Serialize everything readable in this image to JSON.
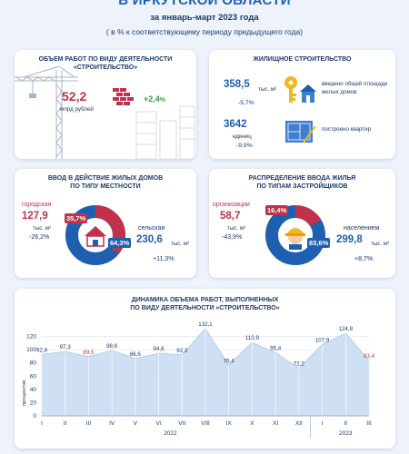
{
  "header": {
    "title": "В ИРКУТСКОЙ ОБЛАСТИ",
    "period": "за январь-март 2023 года",
    "note": "( в % к соответствующему периоду предыдущего года)"
  },
  "construction": {
    "title_line1": "ОБЪЕМ РАБОТ ПО ВИДУ ДЕЯТЕЛЬНОСТИ",
    "title_line2": "«СТРОИТЕЛЬСТВО»",
    "value": "52,2",
    "unit": "млрд рублей",
    "change": "+2,4",
    "change_unit": "%"
  },
  "housing": {
    "title": "ЖИЛИЩНОЕ СТРОИТЕЛЬСТВО",
    "area_value": "358,5",
    "area_unit": "тыс. м²",
    "area_change": "-5,7%",
    "area_desc": "введено общей площади жилых домов",
    "flats_value": "3642",
    "flats_unit": "единиц",
    "flats_change": "-9,9%",
    "flats_desc": "построено квартир"
  },
  "locality": {
    "title_line1": "ВВОД В ДЕЙСТВИЕ ЖИЛЫХ ДОМОВ",
    "title_line2": "ПО ТИПУ МЕСТНОСТИ",
    "urban_label": "городская",
    "urban_value": "127,9",
    "urban_unit": "тыс. м²",
    "urban_change": "-26,2%",
    "urban_share": "35,7%",
    "urban_share_value": 35.7,
    "rural_label": "сельская",
    "rural_value": "230,6",
    "rural_unit": "тыс. м²",
    "rural_change": "+11,3%",
    "rural_share": "64,3%"
  },
  "developers": {
    "title_line1": "РАСПРЕДЕЛЕНИЕ ВВОДА ЖИЛЬЯ",
    "title_line2": "ПО ТИПАМ ЗАСТРОЙЩИКОВ",
    "org_label": "организации",
    "org_value": "58,7",
    "org_unit": "тыс. м²",
    "org_change": "-43,9%",
    "org_share": "16,4%",
    "org_share_value": 16.4,
    "pop_label": "населением",
    "pop_value": "299,8",
    "pop_unit": "тыс. м²",
    "pop_change": "+8,7%",
    "pop_share": "83,6%"
  },
  "dynamics": {
    "title_line1": "ДИНАМИКА ОБЪЕМА РАБОТ, ВЫПОЛНЕННЫХ",
    "title_line2": "ПО ВИДУ ДЕЯТЕЛЬНОСТИ «СТРОИТЕЛЬСТВО»",
    "y_axis_label": "процентов",
    "year1": "2022",
    "year2": "2023"
  },
  "colors": {
    "blue": "#1f5fb0",
    "red": "#c0324a",
    "green": "#3a9a3a",
    "area_fill": "#cfe0f5",
    "background": "#eef3fb"
  },
  "chart_data": {
    "type": "area",
    "title": "ДИНАМИКА ОБЪЕМА РАБОТ, ВЫПОЛНЕННЫХ ПО ВИДУ ДЕЯТЕЛЬНОСТИ «СТРОИТЕЛЬСТВО»",
    "xlabel": "",
    "ylabel": "процентов",
    "ylim": [
      0,
      140
    ],
    "yticks": [
      0,
      20,
      40,
      60,
      80,
      100,
      120
    ],
    "grid": true,
    "categories": [
      "I",
      "II",
      "III",
      "IV",
      "V",
      "VI",
      "VII",
      "VIII",
      "IX",
      "X",
      "XI",
      "XII",
      "I",
      "II",
      "III"
    ],
    "values": [
      92.8,
      97.3,
      89.5,
      98.6,
      86.6,
      94.6,
      92.3,
      132.1,
      76.4,
      110.9,
      95.4,
      72.2,
      107.9,
      124.8,
      83.4
    ],
    "labels": [
      "92,8",
      "97,3",
      "89,5",
      "98,6",
      "86,6",
      "94,6",
      "92,3",
      "132,1",
      "76,4",
      "110,9",
      "95,4",
      "72,2",
      "107,9",
      "124,8",
      "83,4"
    ],
    "highlight_red": [
      2,
      14
    ],
    "year_groups": [
      {
        "label": "2022",
        "from": 0,
        "to": 11
      },
      {
        "label": "2023",
        "from": 12,
        "to": 14
      }
    ]
  }
}
